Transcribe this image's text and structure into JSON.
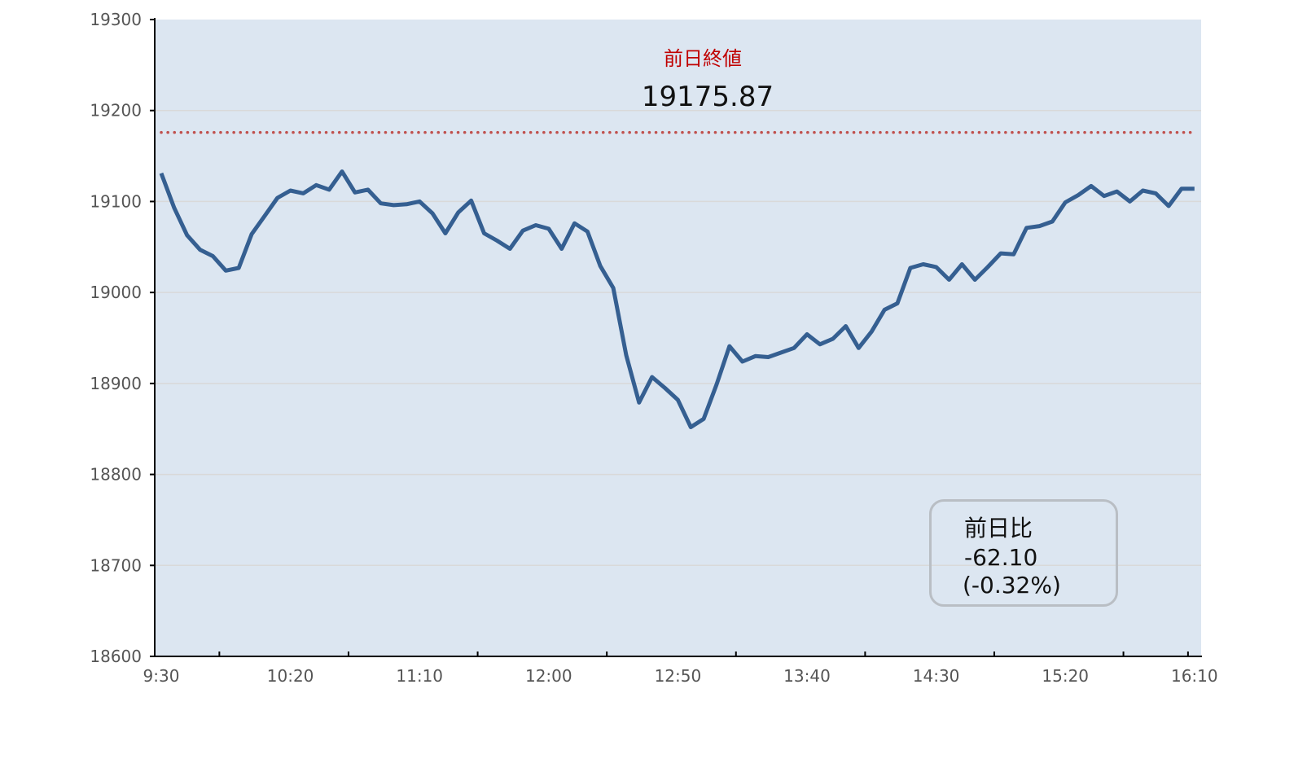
{
  "chart_data": {
    "type": "line",
    "title": "",
    "xlabel": "",
    "ylabel": "",
    "ylim": [
      18600,
      19300
    ],
    "y_ticks": [
      "19300",
      "19200",
      "19100",
      "19000",
      "18900",
      "18800",
      "18700",
      "18600"
    ],
    "x_tick_labels": [
      "9:30",
      "10:20",
      "11:10",
      "12:00",
      "12:50",
      "13:40",
      "14:30",
      "15:20",
      "16:10"
    ],
    "x_interval_minutes": 5,
    "grid": true,
    "background_color": "#dce6f1",
    "line_color": "#355f91",
    "series": [
      {
        "values": [
          19131,
          19093,
          19063,
          19047,
          19040,
          19024,
          19027,
          19064,
          19084,
          19104,
          19112,
          19109,
          19118,
          19113,
          19133,
          19110,
          19113,
          19098,
          19096,
          19097,
          19100,
          19087,
          19065,
          19088,
          19101,
          19065,
          19057,
          19048,
          19068,
          19074,
          19070,
          19048,
          19076,
          19067,
          19029,
          19005,
          18931,
          18879,
          18907,
          18895,
          18882,
          18852,
          18861,
          18899,
          18941,
          18924,
          18930,
          18929,
          18934,
          18939,
          18954,
          18943,
          18949,
          18963,
          18939,
          18957,
          18981,
          18988,
          19027,
          19031,
          19028,
          19014,
          19031,
          19014,
          19028,
          19043,
          19042,
          19071,
          19073,
          19078,
          19099,
          19107,
          19117,
          19106,
          19111,
          19100,
          19112,
          19109,
          19095,
          19114,
          19114
        ]
      }
    ],
    "reference_line": {
      "label": "前日終値",
      "value": 19175.87,
      "value_text": "19175.87",
      "color": "#c0504d",
      "style": "dotted"
    },
    "change_box": {
      "label": "前日比",
      "change": "-62.10",
      "percent": "(-0.32%)"
    }
  }
}
